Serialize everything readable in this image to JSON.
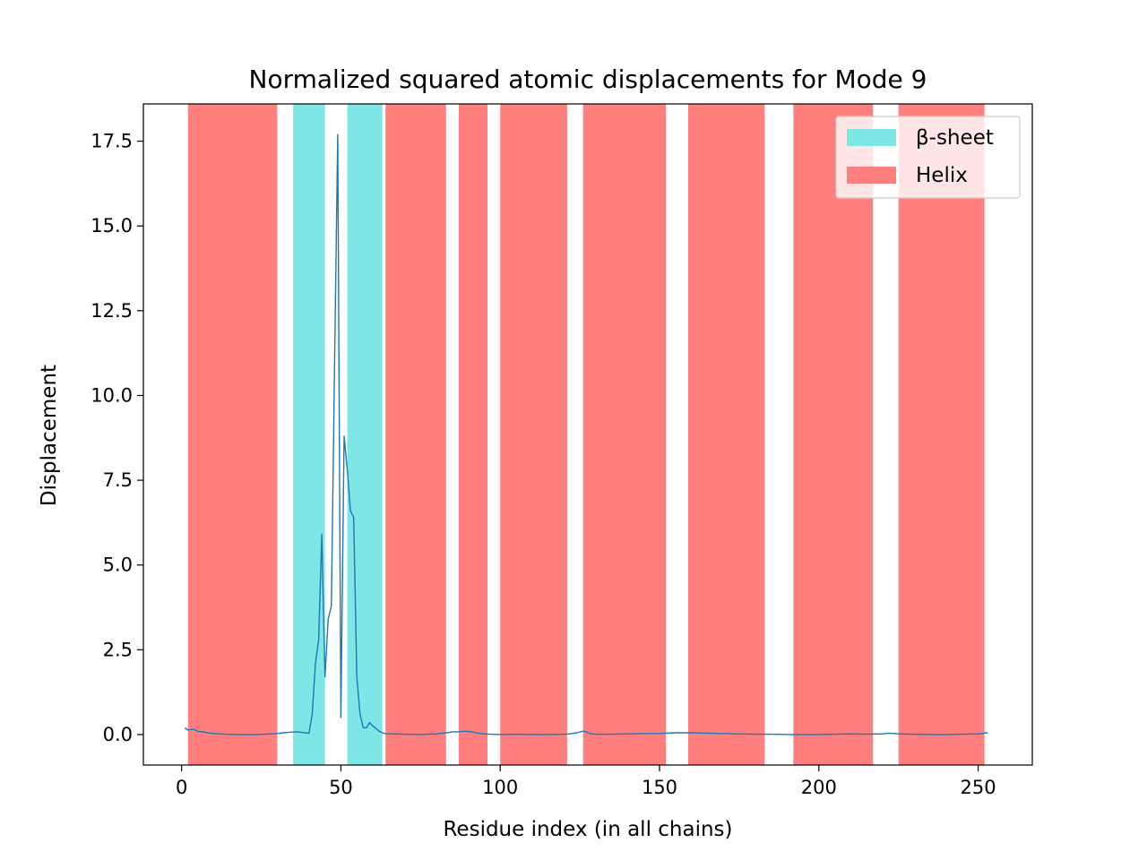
{
  "chart_data": {
    "type": "line",
    "title": "Normalized squared atomic displacements for Mode 9",
    "xlabel": "Residue index (in all chains)",
    "ylabel": "Displacement",
    "xlim": [
      -12,
      267
    ],
    "ylim": [
      -0.9,
      18.6
    ],
    "xticks": [
      0,
      50,
      100,
      150,
      200,
      250
    ],
    "xtick_labels": [
      "0",
      "50",
      "100",
      "150",
      "200",
      "250"
    ],
    "yticks": [
      0.0,
      2.5,
      5.0,
      7.5,
      10.0,
      12.5,
      15.0,
      17.5
    ],
    "ytick_labels": [
      "0.0",
      "2.5",
      "5.0",
      "7.5",
      "10.0",
      "12.5",
      "15.0",
      "17.5"
    ],
    "grid": false,
    "legend_position": "top-right",
    "legend": [
      {
        "label": "β-sheet",
        "color": "#7fe6e6"
      },
      {
        "label": "Helix",
        "color": "#ff7f7f"
      }
    ],
    "regions": [
      {
        "type": "helix",
        "start": 2,
        "end": 30
      },
      {
        "type": "sheet",
        "start": 35,
        "end": 45
      },
      {
        "type": "sheet",
        "start": 52,
        "end": 63
      },
      {
        "type": "helix",
        "start": 64,
        "end": 83
      },
      {
        "type": "helix",
        "start": 87,
        "end": 96
      },
      {
        "type": "helix",
        "start": 100,
        "end": 121
      },
      {
        "type": "helix",
        "start": 126,
        "end": 152
      },
      {
        "type": "helix",
        "start": 159,
        "end": 183
      },
      {
        "type": "helix",
        "start": 192,
        "end": 217
      },
      {
        "type": "helix",
        "start": 225,
        "end": 252
      }
    ],
    "series": [
      {
        "color": "#1f77b4",
        "x": [
          1,
          2,
          3,
          4,
          5,
          6,
          7,
          8,
          9,
          10,
          12,
          14,
          16,
          18,
          20,
          22,
          24,
          26,
          28,
          30,
          32,
          34,
          36,
          38,
          40,
          41,
          42,
          43,
          44,
          45,
          46,
          47,
          48,
          49,
          50,
          51,
          52,
          53,
          54,
          55,
          56,
          57,
          58,
          59,
          60,
          61,
          62,
          63,
          64,
          66,
          70,
          75,
          80,
          83,
          85,
          87,
          89,
          91,
          93,
          95,
          97,
          100,
          105,
          110,
          115,
          120,
          122,
          124,
          126,
          127,
          128,
          130,
          135,
          140,
          145,
          150,
          155,
          160,
          165,
          170,
          175,
          180,
          185,
          190,
          195,
          200,
          205,
          210,
          215,
          220,
          222,
          225,
          230,
          235,
          240,
          245,
          250,
          253
        ],
        "y": [
          0.2,
          0.13,
          0.15,
          0.15,
          0.1,
          0.08,
          0.08,
          0.05,
          0.04,
          0.03,
          0.02,
          0.01,
          0.0,
          0.0,
          0.0,
          0.0,
          0.0,
          0.01,
          0.02,
          0.03,
          0.05,
          0.07,
          0.08,
          0.06,
          0.04,
          0.6,
          2.1,
          2.8,
          5.9,
          1.7,
          3.4,
          3.8,
          10.8,
          17.7,
          0.5,
          8.8,
          7.8,
          6.6,
          6.4,
          1.7,
          0.6,
          0.2,
          0.2,
          0.35,
          0.25,
          0.18,
          0.1,
          0.05,
          0.03,
          0.02,
          0.01,
          0.0,
          0.02,
          0.05,
          0.08,
          0.08,
          0.1,
          0.08,
          0.04,
          0.02,
          0.01,
          0.0,
          0.01,
          0.0,
          0.0,
          0.01,
          0.02,
          0.05,
          0.1,
          0.08,
          0.03,
          0.01,
          0.01,
          0.02,
          0.03,
          0.03,
          0.05,
          0.05,
          0.04,
          0.03,
          0.02,
          0.01,
          0.01,
          0.0,
          0.0,
          0.0,
          0.01,
          0.02,
          0.01,
          0.02,
          0.04,
          0.02,
          0.01,
          0.0,
          0.0,
          0.01,
          0.02,
          0.05
        ]
      }
    ]
  }
}
